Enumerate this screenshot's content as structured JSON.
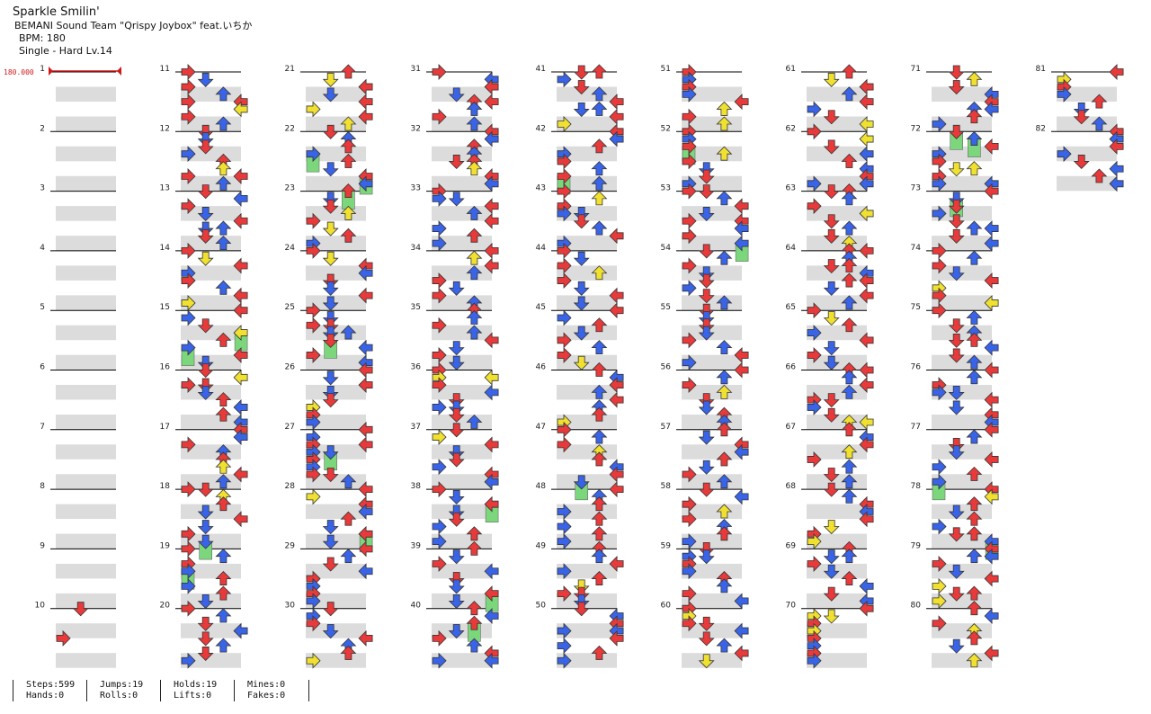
{
  "song": {
    "title": "Sparkle Smilin'",
    "artist": "BEMANI Sound Team \"Qrispy Joybox\" feat.いちか",
    "bpm_text": "BPM: 180",
    "difficulty_text": "Single - Hard  Lv.14",
    "bpm_marker": "180.000"
  },
  "colors": {
    "red": "#e83a3a",
    "blue": "#3a64e8",
    "yellow": "#f0e030",
    "purple": "#b040e8",
    "hold_green": "#7cd67c",
    "stripe": "#dcdcdc",
    "bpm_line": "#d01818"
  },
  "measures": [
    "1",
    "2",
    "3",
    "4",
    "5",
    "6",
    "7",
    "8",
    "9",
    "10",
    "11",
    "12",
    "13",
    "14",
    "15",
    "16",
    "17",
    "18",
    "19",
    "20",
    "21",
    "22",
    "23",
    "24",
    "25",
    "26",
    "27",
    "28",
    "29",
    "30",
    "31",
    "32",
    "33",
    "34",
    "35",
    "36",
    "37",
    "38",
    "39",
    "40",
    "41",
    "42",
    "43",
    "44",
    "45",
    "46",
    "47",
    "48",
    "49",
    "50",
    "51",
    "52",
    "53",
    "54",
    "55",
    "56",
    "57",
    "58",
    "59",
    "60",
    "61",
    "62",
    "63",
    "64",
    "65",
    "66",
    "67",
    "68",
    "69",
    "70",
    "71",
    "72",
    "73",
    "74",
    "75",
    "76",
    "77",
    "78",
    "79",
    "80",
    "81",
    "82"
  ],
  "stats": {
    "steps": "Steps:599",
    "hands": "Hands:0",
    "jumps": "Jumps:19",
    "rolls": "Rolls:0",
    "holds": "Holds:19",
    "lifts": "Lifts:0",
    "mines": "Mines:0",
    "fakes": "Fakes:0"
  }
}
